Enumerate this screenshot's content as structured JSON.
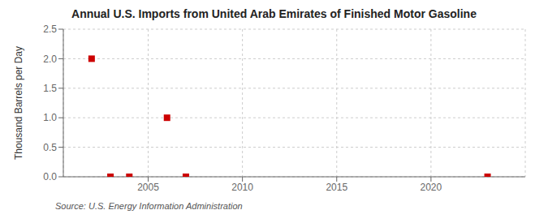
{
  "chart_data": {
    "type": "scatter",
    "title": "Annual U.S. Imports from United Arab Emirates of Finished Motor Gasoline",
    "ylabel": "Thousand Barrels per Day",
    "annotation": "Source: U.S. Energy Information Administration",
    "x": [
      2002,
      2003,
      2004,
      2006,
      2007,
      2023
    ],
    "values": [
      2.0,
      0.0,
      0.0,
      1.0,
      0.0,
      0.0
    ],
    "color": "#cc0000",
    "marker": "square",
    "xlim": [
      2000.5,
      2025
    ],
    "ylim": [
      0,
      2.5
    ],
    "xticks": [
      2005,
      2010,
      2015,
      2020
    ],
    "yticks": [
      {
        "value": 0.0,
        "label": "0.0"
      },
      0.5,
      {
        "value": 1.0,
        "label": "1.0"
      },
      1.5,
      {
        "value": 2.0,
        "label": "2.0"
      },
      2.5
    ],
    "grid": true
  }
}
